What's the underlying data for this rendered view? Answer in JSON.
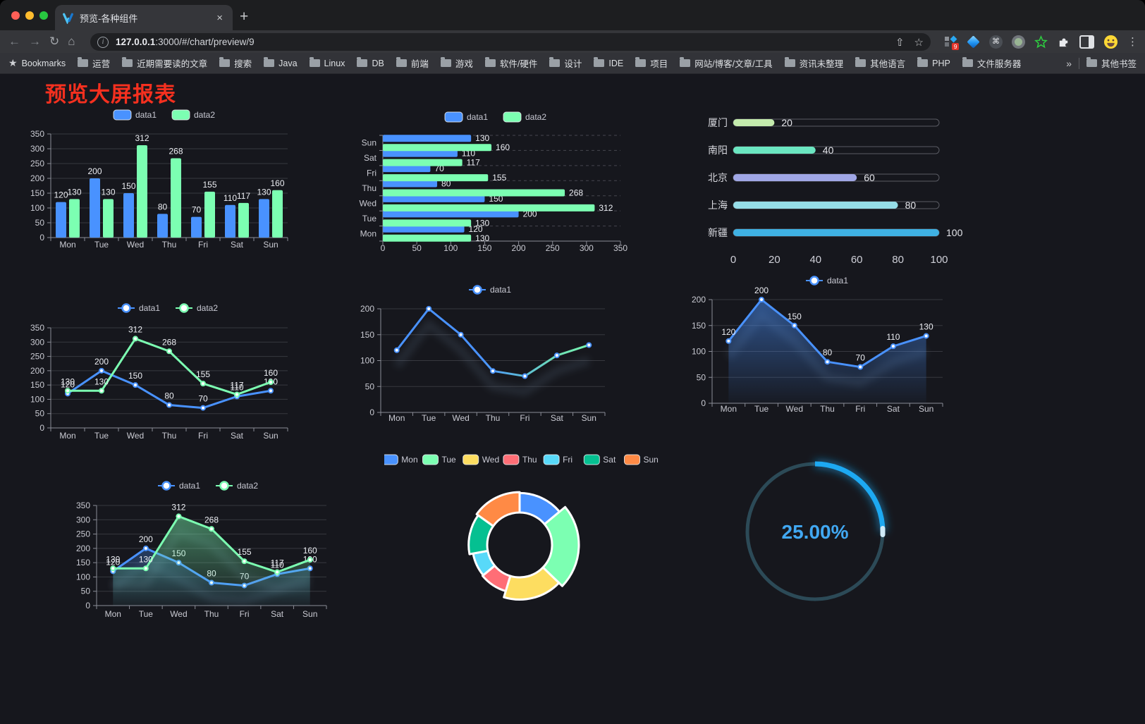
{
  "tab": {
    "title": "预览-各种组件",
    "close_glyph": "×",
    "new_tab_glyph": "+"
  },
  "toolbar": {
    "url_host": "127.0.0.1",
    "url_rest": ":3000/#/chart/preview/9",
    "ext_badge": "9"
  },
  "icons": {
    "back": "←",
    "forward": "→",
    "reload": "↻",
    "home": "⌂",
    "menu": "⋮",
    "share": "⇧",
    "star_outline": "☆",
    "bookmark_star": "★",
    "cmd": "⌘",
    "info": "i"
  },
  "bookmarks_bar": {
    "root_label": "Bookmarks",
    "items": [
      "运营",
      "近期需要读的文章",
      "搜索",
      "Java",
      "Linux",
      "DB",
      "前端",
      "游戏",
      "软件/硬件",
      "设计",
      "IDE",
      "项目",
      "网站/博客/文章/工具",
      "资讯未整理",
      "其他语言",
      "PHP",
      "文件服务器"
    ],
    "overflow": "»",
    "other_label": "其他书签"
  },
  "page": {
    "title": "预览大屏报表",
    "title_color": "#f5301f",
    "bg": "#16171d"
  },
  "chart_data": [
    {
      "id": "bar-grouped",
      "type": "bar",
      "categories": [
        "Mon",
        "Tue",
        "Wed",
        "Thu",
        "Fri",
        "Sat",
        "Sun"
      ],
      "series": [
        {
          "name": "data1",
          "color": "#4992ff",
          "values": [
            120,
            200,
            150,
            80,
            70,
            110,
            130
          ]
        },
        {
          "name": "data2",
          "color": "#7cffb2",
          "values": [
            130,
            130,
            312,
            268,
            155,
            117,
            160
          ]
        }
      ],
      "ylim": [
        0,
        350
      ],
      "ytick": 50,
      "legend_position": "top",
      "data_labels": true,
      "grid": true
    },
    {
      "id": "hbar-grouped",
      "type": "hbar",
      "categories": [
        "Mon",
        "Tue",
        "Wed",
        "Thu",
        "Fri",
        "Sat",
        "Sun"
      ],
      "category_axis_order": "Sun-at-top",
      "series": [
        {
          "name": "data1",
          "color": "#4992ff",
          "values": [
            120,
            200,
            150,
            80,
            70,
            110,
            130
          ]
        },
        {
          "name": "data2",
          "color": "#7cffb2",
          "values": [
            130,
            130,
            312,
            268,
            155,
            117,
            160
          ]
        }
      ],
      "xlim": [
        0,
        350
      ],
      "xtick": 50,
      "legend_position": "top",
      "data_labels": true,
      "grid": true
    },
    {
      "id": "city-progress",
      "type": "progress",
      "max": 100,
      "xticks": [
        0,
        20,
        40,
        60,
        80,
        100
      ],
      "items": [
        {
          "label": "厦门",
          "value": 20,
          "color": "#c4ebad"
        },
        {
          "label": "南阳",
          "value": 40,
          "color": "#6be6c1"
        },
        {
          "label": "北京",
          "value": 60,
          "color": "#a0a7e6"
        },
        {
          "label": "上海",
          "value": 80,
          "color": "#96dee8"
        },
        {
          "label": "新疆",
          "value": 100,
          "color": "#3fb1e3"
        }
      ]
    },
    {
      "id": "line-two",
      "type": "line",
      "categories": [
        "Mon",
        "Tue",
        "Wed",
        "Thu",
        "Fri",
        "Sat",
        "Sun"
      ],
      "series": [
        {
          "name": "data1",
          "color": "#4992ff",
          "values": [
            120,
            200,
            150,
            80,
            70,
            110,
            130
          ]
        },
        {
          "name": "data2",
          "color": "#7cffb2",
          "values": [
            130,
            130,
            312,
            268,
            155,
            117,
            160
          ]
        }
      ],
      "ylim": [
        0,
        350
      ],
      "ytick": 50,
      "legend_position": "top",
      "data_labels": true,
      "grid": true
    },
    {
      "id": "line-gradient",
      "type": "line",
      "categories": [
        "Mon",
        "Tue",
        "Wed",
        "Thu",
        "Fri",
        "Sat",
        "Sun"
      ],
      "series": [
        {
          "name": "data1",
          "color": "#4992ff",
          "color_end": "#7cffb2",
          "values": [
            120,
            200,
            150,
            80,
            70,
            110,
            130
          ]
        }
      ],
      "ylim": [
        0,
        200
      ],
      "ytick": 50,
      "legend_position": "top",
      "data_labels": false,
      "shadow": true,
      "grid": true
    },
    {
      "id": "area-single",
      "type": "line",
      "categories": [
        "Mon",
        "Tue",
        "Wed",
        "Thu",
        "Fri",
        "Sat",
        "Sun"
      ],
      "series": [
        {
          "name": "data1",
          "color": "#4992ff",
          "values": [
            120,
            200,
            150,
            80,
            70,
            110,
            130
          ],
          "area": true
        }
      ],
      "ylim": [
        0,
        200
      ],
      "ytick": 50,
      "legend_position": "top",
      "data_labels": true,
      "shadow": true,
      "grid": true
    },
    {
      "id": "line-two-area",
      "type": "line",
      "categories": [
        "Mon",
        "Tue",
        "Wed",
        "Thu",
        "Fri",
        "Sat",
        "Sun"
      ],
      "series": [
        {
          "name": "data1",
          "color": "#4992ff",
          "values": [
            120,
            200,
            150,
            80,
            70,
            110,
            130
          ],
          "area": true
        },
        {
          "name": "data2",
          "color": "#7cffb2",
          "values": [
            130,
            130,
            312,
            268,
            155,
            117,
            160
          ],
          "area": true
        }
      ],
      "ylim": [
        0,
        350
      ],
      "ytick": 50,
      "legend_position": "top",
      "data_labels": true,
      "shadow": true,
      "grid": true
    },
    {
      "id": "donut-days",
      "type": "pie",
      "rose": true,
      "legend_position": "top",
      "items": [
        {
          "label": "Mon",
          "value": 120,
          "color": "#4992ff"
        },
        {
          "label": "Tue",
          "value": 200,
          "color": "#7cffb2"
        },
        {
          "label": "Wed",
          "value": 150,
          "color": "#fddd60"
        },
        {
          "label": "Thu",
          "value": 80,
          "color": "#ff6e76"
        },
        {
          "label": "Fri",
          "value": 70,
          "color": "#58d9f9"
        },
        {
          "label": "Sat",
          "value": 110,
          "color": "#05c091"
        },
        {
          "label": "Sun",
          "value": 130,
          "color": "#ff8a45"
        }
      ]
    },
    {
      "id": "gauge-percent",
      "type": "gauge",
      "value": 25,
      "max": 100,
      "label": "25.00%",
      "color": "#1da9f2",
      "track_color": "#2c4a57",
      "text_color": "#41a8f2"
    }
  ]
}
